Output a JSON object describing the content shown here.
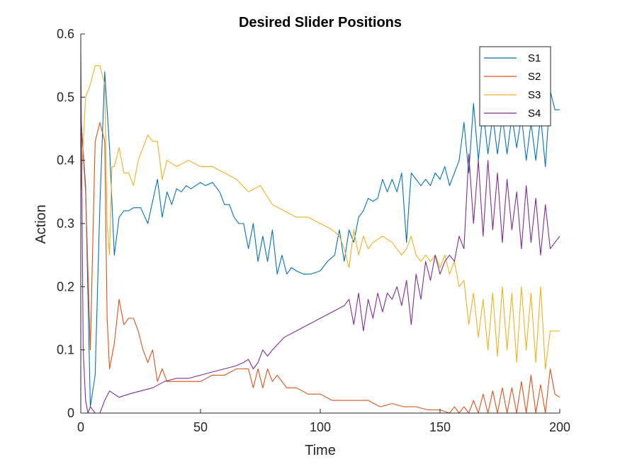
{
  "chart_data": {
    "type": "line",
    "title": "Desired Slider Positions",
    "xlabel": "Time",
    "ylabel": "Action",
    "xlim": [
      0,
      200
    ],
    "ylim": [
      0,
      0.6
    ],
    "xticks": [
      0,
      50,
      100,
      150,
      200
    ],
    "yticks": [
      0,
      0.1,
      0.2,
      0.3,
      0.4,
      0.5,
      0.6
    ],
    "xtick_labels": [
      "0",
      "50",
      "100",
      "150",
      "200"
    ],
    "ytick_labels": [
      "0",
      "0.1",
      "0.2",
      "0.3",
      "0.4",
      "0.5",
      "0.6"
    ],
    "grid": false,
    "legend_position": "top-right",
    "series": [
      {
        "name": "S1",
        "color": "#0072BD",
        "x": [
          0,
          2,
          4,
          6,
          8,
          10,
          12,
          14,
          16,
          18,
          20,
          22,
          25,
          28,
          32,
          34,
          36,
          38,
          40,
          42,
          44,
          46,
          48,
          50,
          52,
          55,
          58,
          60,
          62,
          64,
          66,
          68,
          70,
          72,
          74,
          76,
          78,
          80,
          82,
          84,
          86,
          88,
          90,
          93,
          96,
          100,
          103,
          106,
          108,
          110,
          112,
          114,
          116,
          118,
          120,
          122,
          124,
          126,
          128,
          130,
          132,
          134,
          136,
          137,
          138,
          140,
          142,
          144,
          146,
          148,
          150,
          152,
          154,
          156,
          158,
          160,
          162,
          164,
          166,
          168,
          170,
          172,
          174,
          176,
          178,
          180,
          182,
          184,
          186,
          188,
          190,
          192,
          194,
          196,
          198,
          200
        ],
        "y": [
          0.47,
          0.36,
          0.01,
          0.06,
          0.33,
          0.54,
          0.42,
          0.25,
          0.31,
          0.32,
          0.32,
          0.325,
          0.325,
          0.3,
          0.37,
          0.31,
          0.35,
          0.33,
          0.355,
          0.35,
          0.36,
          0.355,
          0.36,
          0.365,
          0.36,
          0.365,
          0.35,
          0.33,
          0.33,
          0.31,
          0.3,
          0.3,
          0.26,
          0.3,
          0.24,
          0.28,
          0.24,
          0.29,
          0.22,
          0.25,
          0.22,
          0.23,
          0.225,
          0.22,
          0.22,
          0.225,
          0.24,
          0.25,
          0.29,
          0.24,
          0.29,
          0.27,
          0.31,
          0.32,
          0.34,
          0.335,
          0.34,
          0.37,
          0.35,
          0.37,
          0.35,
          0.38,
          0.27,
          0.33,
          0.38,
          0.37,
          0.36,
          0.37,
          0.36,
          0.38,
          0.37,
          0.39,
          0.36,
          0.38,
          0.4,
          0.46,
          0.38,
          0.49,
          0.4,
          0.48,
          0.41,
          0.47,
          0.41,
          0.47,
          0.41,
          0.47,
          0.42,
          0.47,
          0.4,
          0.46,
          0.4,
          0.47,
          0.39,
          0.51,
          0.48,
          0.48
        ]
      },
      {
        "name": "S2",
        "color": "#D95319",
        "x": [
          0,
          2,
          4,
          6,
          8,
          10,
          11,
          12,
          14,
          16,
          18,
          20,
          22,
          24,
          26,
          28,
          30,
          32,
          34,
          36,
          40,
          45,
          50,
          55,
          60,
          65,
          70,
          72,
          74,
          76,
          78,
          80,
          82,
          86,
          90,
          95,
          100,
          105,
          110,
          115,
          120,
          125,
          130,
          135,
          140,
          145,
          150,
          154,
          156,
          158,
          160,
          162,
          164,
          166,
          168,
          170,
          172,
          174,
          176,
          178,
          180,
          182,
          184,
          186,
          188,
          190,
          192,
          194,
          196,
          198,
          200
        ],
        "y": [
          0.47,
          0.35,
          0.1,
          0.43,
          0.46,
          0.43,
          0.15,
          0.07,
          0.11,
          0.18,
          0.14,
          0.15,
          0.15,
          0.13,
          0.1,
          0.08,
          0.1,
          0.05,
          0.07,
          0.05,
          0.05,
          0.05,
          0.05,
          0.06,
          0.06,
          0.07,
          0.07,
          0.04,
          0.07,
          0.04,
          0.07,
          0.05,
          0.06,
          0.04,
          0.04,
          0.03,
          0.03,
          0.02,
          0.02,
          0.02,
          0.02,
          0.01,
          0.015,
          0.01,
          0.01,
          0.005,
          0.005,
          0.0,
          0.01,
          0.0,
          0.01,
          0.0,
          0.02,
          0.0,
          0.03,
          0.0,
          0.035,
          0.0,
          0.04,
          0.0,
          0.04,
          0.0,
          0.05,
          0.0,
          0.06,
          0.0,
          0.045,
          0.0,
          0.07,
          0.03,
          0.025
        ]
      },
      {
        "name": "S3",
        "color": "#EDB120",
        "x": [
          0,
          2,
          4,
          6,
          8,
          10,
          11,
          12,
          13,
          14,
          16,
          18,
          20,
          22,
          24,
          26,
          28,
          30,
          32,
          34,
          36,
          40,
          45,
          50,
          55,
          60,
          65,
          70,
          75,
          80,
          85,
          90,
          95,
          100,
          105,
          108,
          110,
          112,
          114,
          116,
          118,
          120,
          122,
          126,
          130,
          134,
          136,
          138,
          140,
          142,
          144,
          146,
          148,
          150,
          152,
          154,
          156,
          158,
          160,
          162,
          164,
          166,
          168,
          170,
          172,
          174,
          176,
          178,
          180,
          182,
          184,
          186,
          188,
          190,
          192,
          194,
          196,
          198,
          200
        ],
        "y": [
          0.35,
          0.5,
          0.52,
          0.55,
          0.55,
          0.52,
          0.3,
          0.25,
          0.39,
          0.39,
          0.42,
          0.38,
          0.38,
          0.36,
          0.4,
          0.42,
          0.44,
          0.43,
          0.43,
          0.37,
          0.4,
          0.39,
          0.4,
          0.39,
          0.39,
          0.38,
          0.37,
          0.35,
          0.36,
          0.33,
          0.32,
          0.31,
          0.31,
          0.3,
          0.29,
          0.28,
          0.26,
          0.23,
          0.29,
          0.25,
          0.28,
          0.26,
          0.27,
          0.28,
          0.27,
          0.25,
          0.26,
          0.28,
          0.25,
          0.24,
          0.25,
          0.24,
          0.25,
          0.23,
          0.25,
          0.22,
          0.24,
          0.2,
          0.21,
          0.14,
          0.19,
          0.12,
          0.18,
          0.1,
          0.19,
          0.09,
          0.2,
          0.1,
          0.19,
          0.08,
          0.2,
          0.1,
          0.19,
          0.08,
          0.2,
          0.07,
          0.13,
          0.13,
          0.13
        ]
      },
      {
        "name": "S4",
        "color": "#7E2F8E",
        "x": [
          0,
          1,
          2,
          3,
          4,
          6,
          8,
          10,
          12,
          14,
          16,
          20,
          25,
          30,
          35,
          40,
          45,
          50,
          55,
          60,
          65,
          68,
          70,
          72,
          74,
          76,
          78,
          80,
          85,
          90,
          95,
          100,
          105,
          110,
          112,
          114,
          116,
          118,
          120,
          122,
          124,
          126,
          128,
          130,
          132,
          134,
          136,
          138,
          140,
          142,
          144,
          146,
          148,
          150,
          152,
          154,
          156,
          158,
          160,
          162,
          164,
          166,
          168,
          170,
          172,
          174,
          176,
          178,
          180,
          182,
          184,
          186,
          188,
          190,
          192,
          194,
          196,
          198,
          200
        ],
        "y": [
          0.57,
          0.1,
          0.02,
          0.0,
          0.01,
          0.0,
          0.0,
          0.02,
          0.035,
          0.03,
          0.025,
          0.03,
          0.035,
          0.04,
          0.05,
          0.055,
          0.055,
          0.06,
          0.065,
          0.07,
          0.075,
          0.08,
          0.085,
          0.07,
          0.08,
          0.1,
          0.09,
          0.1,
          0.12,
          0.13,
          0.14,
          0.15,
          0.16,
          0.17,
          0.18,
          0.14,
          0.19,
          0.13,
          0.18,
          0.15,
          0.19,
          0.16,
          0.19,
          0.18,
          0.2,
          0.17,
          0.21,
          0.14,
          0.22,
          0.18,
          0.24,
          0.21,
          0.25,
          0.22,
          0.24,
          0.25,
          0.24,
          0.28,
          0.26,
          0.41,
          0.3,
          0.4,
          0.28,
          0.4,
          0.29,
          0.38,
          0.27,
          0.37,
          0.29,
          0.35,
          0.26,
          0.36,
          0.27,
          0.34,
          0.25,
          0.33,
          0.26,
          0.27,
          0.28
        ]
      }
    ]
  }
}
